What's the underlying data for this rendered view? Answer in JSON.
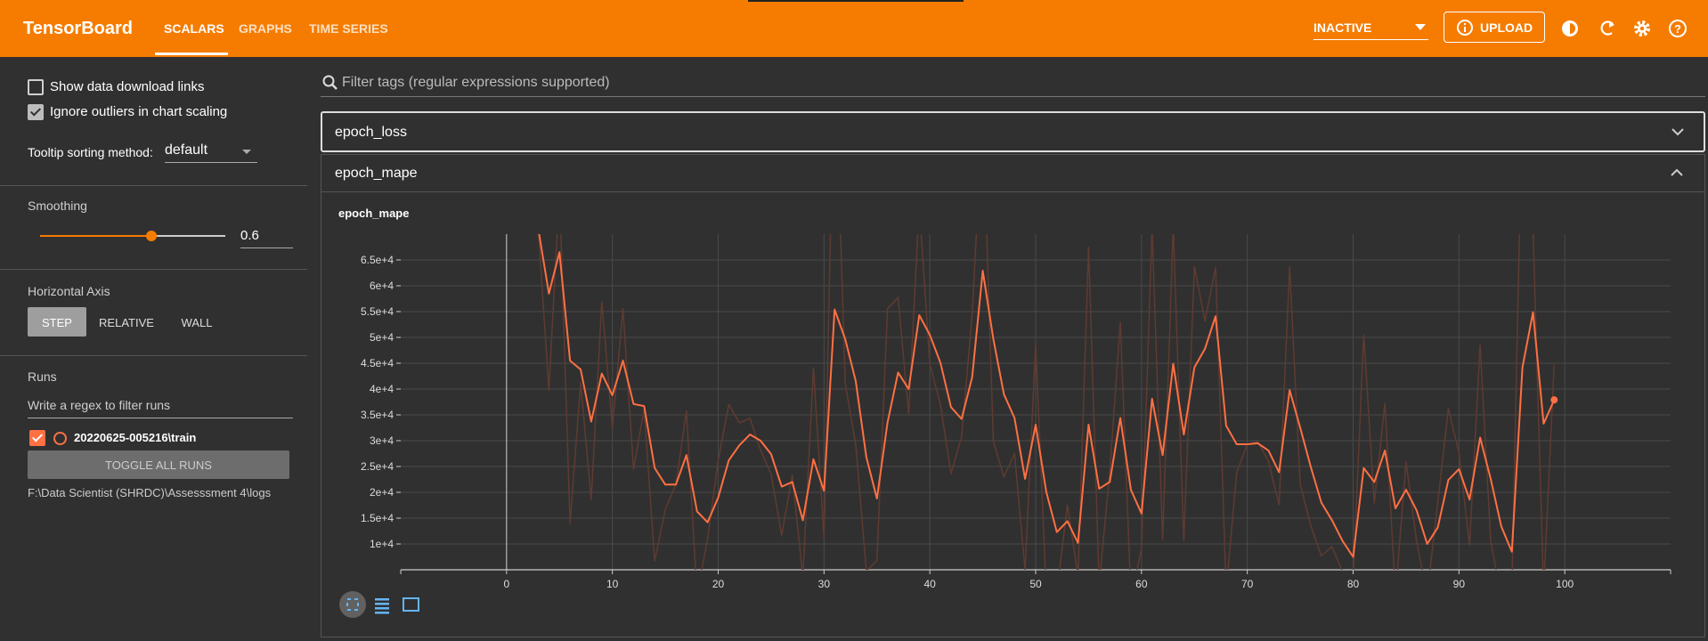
{
  "header": {
    "title": "TensorBoard",
    "tabs": [
      "SCALARS",
      "GRAPHS",
      "TIME SERIES"
    ],
    "status": "INACTIVE",
    "upload": "UPLOAD"
  },
  "sidebar": {
    "download_links": {
      "label": "Show data download links",
      "checked": false
    },
    "ignore_outliers": {
      "label": "Ignore outliers in chart scaling",
      "checked": true
    },
    "tooltip_sorting": {
      "label": "Tooltip sorting method:",
      "value": "default"
    },
    "smoothing": {
      "label": "Smoothing",
      "value": 0.6
    },
    "horizontal_axis": {
      "label": "Horizontal Axis",
      "options": [
        "STEP",
        "RELATIVE",
        "WALL"
      ]
    },
    "runs": {
      "label": "Runs",
      "filter_placeholder": "Write a regex to filter runs",
      "toggle_all": "TOGGLE ALL RUNS",
      "logdir": "F:\\Data Scientist (SHRDC)\\Assesssment 4\\logs"
    }
  },
  "filter_placeholder": "Filter tags (regular expressions supported)",
  "cards": [
    "epoch_loss",
    "epoch_mape"
  ],
  "chart_data": {
    "type": "line",
    "title": "epoch_mape",
    "x": [
      3,
      4,
      5,
      6,
      7,
      8,
      9,
      10,
      11,
      12,
      13,
      14,
      15,
      16,
      17,
      18,
      19,
      20,
      21,
      22,
      23,
      24,
      25,
      26,
      27,
      28,
      29,
      30,
      31,
      32,
      33,
      34,
      35,
      36,
      37,
      38,
      39,
      40,
      41,
      42,
      43,
      44,
      45,
      46,
      47,
      48,
      49,
      50,
      51,
      52,
      53,
      54,
      55,
      56,
      57,
      58,
      59,
      60,
      61,
      62,
      63,
      64,
      65,
      66,
      67,
      68,
      69,
      70,
      71,
      72,
      73,
      74,
      75,
      76,
      77,
      78,
      79,
      80,
      81,
      82,
      83,
      84,
      85,
      86,
      87,
      88,
      89,
      90,
      91,
      92,
      93,
      94,
      95,
      96,
      97,
      98,
      99
    ],
    "series": [
      {
        "name": "20220625-005216\\train",
        "color": "#ff7043",
        "values": [
          71000,
          58500,
          66500,
          45500,
          43800,
          33700,
          43000,
          38800,
          45500,
          37100,
          36700,
          24700,
          21500,
          21500,
          27200,
          16300,
          14200,
          19000,
          26200,
          29100,
          31200,
          30000,
          27400,
          21100,
          22000,
          14600,
          26400,
          20300,
          55400,
          49700,
          41500,
          26800,
          18800,
          33500,
          43200,
          40000,
          54300,
          50500,
          45100,
          36500,
          34200,
          42300,
          62900,
          49700,
          39000,
          34400,
          22600,
          33100,
          20100,
          12300,
          14400,
          10200,
          33100,
          20700,
          22000,
          34400,
          20500,
          15900,
          38100,
          27200,
          44900,
          31200,
          44200,
          47800,
          54100,
          32900,
          29300,
          29300,
          29500,
          28100,
          23900,
          39800,
          32500,
          24900,
          18000,
          14600,
          10600,
          7500,
          24700,
          22000,
          28100,
          16900,
          20500,
          16500,
          10000,
          13200,
          22400,
          24500,
          18600,
          30600,
          22600,
          13400,
          8500,
          44200,
          54900,
          33300,
          37900
        ]
      },
      {
        "color": "#5e3b31",
        "values": [
          71000,
          39750,
          78500,
          14000,
          41250,
          18550,
          56950,
          32500,
          55550,
          24500,
          36100,
          6700,
          16700,
          21500,
          35750,
          -50,
          11050,
          26200,
          37000,
          33450,
          34350,
          28200,
          23500,
          11650,
          23350,
          3500,
          44100,
          11150,
          108050,
          41150,
          29200,
          4750,
          6800,
          55550,
          57750,
          35200,
          75750,
          44800,
          37000,
          23600,
          30750,
          54450,
          93800,
          29900,
          22950,
          27500,
          4900,
          48850,
          600,
          600,
          17550,
          3900,
          67450,
          2100,
          23950,
          53000,
          -350,
          9000,
          71400,
          10850,
          71450,
          10650,
          63700,
          53200,
          63550,
          1100,
          23900,
          29300,
          29800,
          26000,
          17600,
          63650,
          21550,
          13500,
          7650,
          9500,
          4600,
          2850,
          50500,
          17950,
          37250,
          100,
          25900,
          10500,
          250,
          18000,
          36200,
          27650,
          9750,
          48600,
          10600,
          -400,
          1150,
          97750,
          70950,
          900,
          44800
        ]
      }
    ],
    "xlim": [
      -10,
      110
    ],
    "ylim": [
      5000,
      70000
    ],
    "xticks": [
      0,
      10,
      20,
      30,
      40,
      50,
      60,
      70,
      80,
      90,
      100
    ],
    "yticks": [
      {
        "value": 10000,
        "label": "1e+4"
      },
      {
        "value": 15000,
        "label": "1.5e+4"
      },
      {
        "value": 20000,
        "label": "2e+4"
      },
      {
        "value": 25000,
        "label": "2.5e+4"
      },
      {
        "value": 30000,
        "label": "3e+4"
      },
      {
        "value": 35000,
        "label": "3.5e+4"
      },
      {
        "value": 40000,
        "label": "4e+4"
      },
      {
        "value": 45000,
        "label": "4.5e+4"
      },
      {
        "value": 50000,
        "label": "5e+4"
      },
      {
        "value": 55000,
        "label": "5.5e+4"
      },
      {
        "value": 60000,
        "label": "6e+4"
      },
      {
        "value": 65000,
        "label": "6.5e+4"
      }
    ],
    "grid": true
  }
}
